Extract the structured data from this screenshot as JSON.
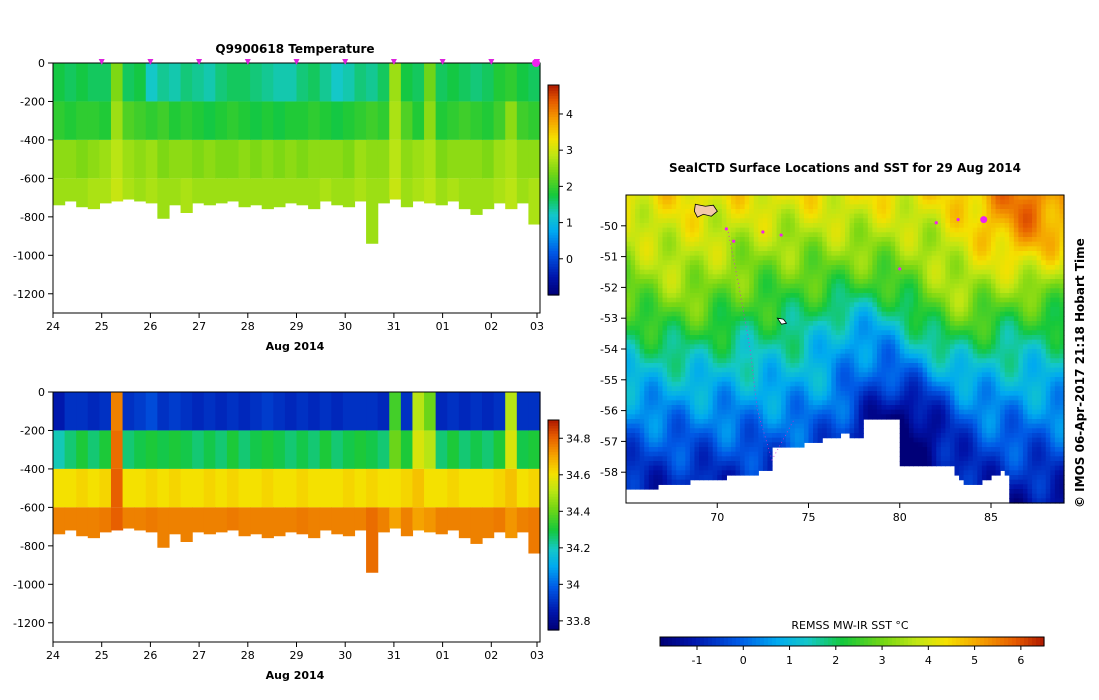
{
  "chart_data": [
    {
      "type": "heatmap",
      "title": "Q9900618  Temperature",
      "xlabel": "Aug 2014",
      "ylabel": "",
      "x_ticks": [
        "24",
        "25",
        "26",
        "27",
        "28",
        "29",
        "30",
        "31",
        "01",
        "02",
        "03"
      ],
      "y_ticks": [
        0,
        -200,
        -400,
        -600,
        -800,
        -1000,
        -1200
      ],
      "ylim": [
        -1300,
        0
      ],
      "colorbar": {
        "min": -1,
        "max": 4.8,
        "ticks": [
          0,
          1,
          2,
          3,
          4
        ]
      },
      "profile_markers_x": [
        "25",
        "26",
        "27",
        "28",
        "29",
        "30",
        "31",
        "01",
        "02",
        "03"
      ],
      "profiles": [
        {
          "d": -740,
          "v": [
            1.7,
            1.9,
            2.5,
            2.6
          ]
        },
        {
          "d": -720,
          "v": [
            1.6,
            1.8,
            2.5,
            2.6
          ]
        },
        {
          "d": -750,
          "v": [
            1.7,
            1.9,
            2.4,
            2.6
          ]
        },
        {
          "d": -760,
          "v": [
            1.6,
            1.9,
            2.5,
            2.7
          ]
        },
        {
          "d": -730,
          "v": [
            1.6,
            1.8,
            2.6,
            2.7
          ]
        },
        {
          "d": -720,
          "v": [
            2.4,
            2.6,
            2.8,
            2.9
          ]
        },
        {
          "d": -710,
          "v": [
            1.6,
            2.1,
            2.6,
            2.7
          ]
        },
        {
          "d": -720,
          "v": [
            1.7,
            2.0,
            2.5,
            2.6
          ]
        },
        {
          "d": -730,
          "v": [
            1.2,
            1.9,
            2.6,
            2.7
          ]
        },
        {
          "d": -810,
          "v": [
            1.4,
            2.0,
            2.4,
            2.6
          ]
        },
        {
          "d": -740,
          "v": [
            1.3,
            1.8,
            2.5,
            2.6
          ]
        },
        {
          "d": -780,
          "v": [
            1.5,
            1.9,
            2.5,
            2.7
          ]
        },
        {
          "d": -730,
          "v": [
            1.4,
            1.8,
            2.4,
            2.6
          ]
        },
        {
          "d": -740,
          "v": [
            1.3,
            1.7,
            2.5,
            2.6
          ]
        },
        {
          "d": -730,
          "v": [
            1.5,
            1.8,
            2.4,
            2.6
          ]
        },
        {
          "d": -720,
          "v": [
            1.6,
            1.9,
            2.4,
            2.6
          ]
        },
        {
          "d": -750,
          "v": [
            1.6,
            1.8,
            2.5,
            2.6
          ]
        },
        {
          "d": -740,
          "v": [
            1.5,
            1.7,
            2.4,
            2.6
          ]
        },
        {
          "d": -760,
          "v": [
            1.4,
            1.8,
            2.5,
            2.6
          ]
        },
        {
          "d": -750,
          "v": [
            1.3,
            1.7,
            2.4,
            2.6
          ]
        },
        {
          "d": -730,
          "v": [
            1.3,
            1.8,
            2.5,
            2.6
          ]
        },
        {
          "d": -740,
          "v": [
            1.5,
            1.8,
            2.4,
            2.6
          ]
        },
        {
          "d": -760,
          "v": [
            1.6,
            1.9,
            2.5,
            2.6
          ]
        },
        {
          "d": -720,
          "v": [
            1.4,
            1.8,
            2.5,
            2.7
          ]
        },
        {
          "d": -740,
          "v": [
            1.2,
            1.7,
            2.5,
            2.6
          ]
        },
        {
          "d": -750,
          "v": [
            1.3,
            1.8,
            2.4,
            2.6
          ]
        },
        {
          "d": -720,
          "v": [
            1.5,
            1.9,
            2.6,
            2.7
          ]
        },
        {
          "d": -940,
          "v": [
            1.4,
            2.0,
            2.5,
            2.6
          ]
        },
        {
          "d": -730,
          "v": [
            1.6,
            1.9,
            2.5,
            2.6
          ]
        },
        {
          "d": -710,
          "v": [
            2.6,
            2.7,
            2.8,
            2.9
          ]
        },
        {
          "d": -750,
          "v": [
            1.7,
            2.1,
            2.5,
            2.6
          ]
        },
        {
          "d": -720,
          "v": [
            1.6,
            1.8,
            2.6,
            2.7
          ]
        },
        {
          "d": -730,
          "v": [
            2.3,
            2.5,
            2.7,
            2.8
          ]
        },
        {
          "d": -740,
          "v": [
            1.6,
            1.8,
            2.4,
            2.6
          ]
        },
        {
          "d": -720,
          "v": [
            1.7,
            1.9,
            2.5,
            2.7
          ]
        },
        {
          "d": -760,
          "v": [
            1.6,
            2.0,
            2.5,
            2.6
          ]
        },
        {
          "d": -790,
          "v": [
            1.5,
            1.9,
            2.5,
            2.6
          ]
        },
        {
          "d": -760,
          "v": [
            1.6,
            1.8,
            2.4,
            2.6
          ]
        },
        {
          "d": -730,
          "v": [
            1.8,
            2.0,
            2.6,
            2.7
          ]
        },
        {
          "d": -760,
          "v": [
            1.9,
            2.5,
            2.7,
            2.8
          ]
        },
        {
          "d": -730,
          "v": [
            1.7,
            2.0,
            2.5,
            2.6
          ]
        },
        {
          "d": -840,
          "v": [
            1.6,
            1.9,
            2.5,
            2.7
          ]
        }
      ]
    },
    {
      "type": "heatmap",
      "title": "",
      "xlabel": "Aug 2014",
      "ylabel": "",
      "x_ticks": [
        "24",
        "25",
        "26",
        "27",
        "28",
        "29",
        "30",
        "31",
        "01",
        "02",
        "03"
      ],
      "y_ticks": [
        0,
        -200,
        -400,
        -600,
        -800,
        -1000,
        -1200
      ],
      "ylim": [
        -1300,
        0
      ],
      "colorbar": {
        "min": 33.75,
        "max": 34.9,
        "ticks": [
          33.8,
          34,
          34.2,
          34.4,
          34.6,
          34.8
        ]
      },
      "profiles": [
        {
          "d": -740,
          "v": [
            33.85,
            34.2,
            34.6,
            34.75
          ]
        },
        {
          "d": -720,
          "v": [
            33.9,
            34.25,
            34.6,
            34.75
          ]
        },
        {
          "d": -750,
          "v": [
            33.9,
            34.3,
            34.62,
            34.75
          ]
        },
        {
          "d": -760,
          "v": [
            33.88,
            34.25,
            34.6,
            34.75
          ]
        },
        {
          "d": -730,
          "v": [
            33.9,
            34.3,
            34.62,
            34.76
          ]
        },
        {
          "d": -720,
          "v": [
            34.75,
            34.78,
            34.8,
            34.8
          ]
        },
        {
          "d": -710,
          "v": [
            33.9,
            34.25,
            34.6,
            34.75
          ]
        },
        {
          "d": -720,
          "v": [
            33.92,
            34.28,
            34.6,
            34.75
          ]
        },
        {
          "d": -730,
          "v": [
            33.95,
            34.3,
            34.62,
            34.76
          ]
        },
        {
          "d": -810,
          "v": [
            33.9,
            34.28,
            34.6,
            34.75
          ]
        },
        {
          "d": -740,
          "v": [
            33.92,
            34.3,
            34.62,
            34.75
          ]
        },
        {
          "d": -780,
          "v": [
            33.9,
            34.28,
            34.6,
            34.75
          ]
        },
        {
          "d": -730,
          "v": [
            33.88,
            34.25,
            34.6,
            34.75
          ]
        },
        {
          "d": -740,
          "v": [
            33.9,
            34.28,
            34.62,
            34.75
          ]
        },
        {
          "d": -730,
          "v": [
            33.88,
            34.25,
            34.6,
            34.75
          ]
        },
        {
          "d": -720,
          "v": [
            33.9,
            34.3,
            34.62,
            34.76
          ]
        },
        {
          "d": -750,
          "v": [
            33.88,
            34.25,
            34.6,
            34.75
          ]
        },
        {
          "d": -740,
          "v": [
            33.9,
            34.28,
            34.6,
            34.75
          ]
        },
        {
          "d": -760,
          "v": [
            33.92,
            34.3,
            34.62,
            34.75
          ]
        },
        {
          "d": -750,
          "v": [
            33.9,
            34.28,
            34.6,
            34.75
          ]
        },
        {
          "d": -730,
          "v": [
            33.88,
            34.25,
            34.6,
            34.75
          ]
        },
        {
          "d": -740,
          "v": [
            33.9,
            34.28,
            34.62,
            34.76
          ]
        },
        {
          "d": -760,
          "v": [
            33.88,
            34.25,
            34.6,
            34.75
          ]
        },
        {
          "d": -720,
          "v": [
            33.9,
            34.3,
            34.6,
            34.75
          ]
        },
        {
          "d": -740,
          "v": [
            33.88,
            34.25,
            34.6,
            34.75
          ]
        },
        {
          "d": -750,
          "v": [
            33.9,
            34.28,
            34.62,
            34.75
          ]
        },
        {
          "d": -720,
          "v": [
            33.9,
            34.3,
            34.6,
            34.75
          ]
        },
        {
          "d": -940,
          "v": [
            33.9,
            34.28,
            34.62,
            34.78
          ]
        },
        {
          "d": -730,
          "v": [
            33.88,
            34.25,
            34.6,
            34.75
          ]
        },
        {
          "d": -710,
          "v": [
            34.35,
            34.4,
            34.6,
            34.7
          ]
        },
        {
          "d": -750,
          "v": [
            33.9,
            34.3,
            34.62,
            34.75
          ]
        },
        {
          "d": -720,
          "v": [
            34.5,
            34.55,
            34.65,
            34.7
          ]
        },
        {
          "d": -730,
          "v": [
            34.4,
            34.5,
            34.6,
            34.72
          ]
        },
        {
          "d": -740,
          "v": [
            33.88,
            34.25,
            34.6,
            34.75
          ]
        },
        {
          "d": -720,
          "v": [
            33.9,
            34.3,
            34.62,
            34.75
          ]
        },
        {
          "d": -760,
          "v": [
            33.88,
            34.25,
            34.6,
            34.75
          ]
        },
        {
          "d": -790,
          "v": [
            33.9,
            34.28,
            34.6,
            34.75
          ]
        },
        {
          "d": -760,
          "v": [
            33.88,
            34.25,
            34.6,
            34.75
          ]
        },
        {
          "d": -730,
          "v": [
            33.9,
            34.3,
            34.62,
            34.76
          ]
        },
        {
          "d": -760,
          "v": [
            34.5,
            34.55,
            34.65,
            34.72
          ]
        },
        {
          "d": -730,
          "v": [
            33.9,
            34.28,
            34.6,
            34.75
          ]
        },
        {
          "d": -840,
          "v": [
            33.9,
            34.3,
            34.62,
            34.76
          ]
        }
      ]
    },
    {
      "type": "heatmap",
      "title": "SealCTD Surface Locations and SST for 29 Aug 2014",
      "xlabel": "",
      "ylabel": "",
      "x_ticks": [
        70,
        75,
        80,
        85
      ],
      "y_ticks": [
        -50,
        -51,
        -52,
        -53,
        -54,
        -55,
        -56,
        -57,
        -58
      ],
      "xlim": [
        65,
        89
      ],
      "ylim": [
        -59,
        -49
      ],
      "colorbar": {
        "label": "REMSS MW-IR SST °C",
        "min": -1.8,
        "max": 6.5,
        "ticks": [
          -1,
          0,
          1,
          2,
          3,
          4,
          5,
          6
        ]
      },
      "track_points": [
        [
          70.5,
          -50.1
        ],
        [
          70.9,
          -50.5
        ],
        [
          72.5,
          -50.2
        ],
        [
          73.5,
          -50.3
        ],
        [
          80,
          -51.4
        ],
        [
          82,
          -49.9
        ],
        [
          83.2,
          -49.8
        ],
        [
          84.6,
          -49.8
        ]
      ],
      "stamp": "© IMOS 06-Apr-2017 21:18 Hobart Time"
    }
  ]
}
